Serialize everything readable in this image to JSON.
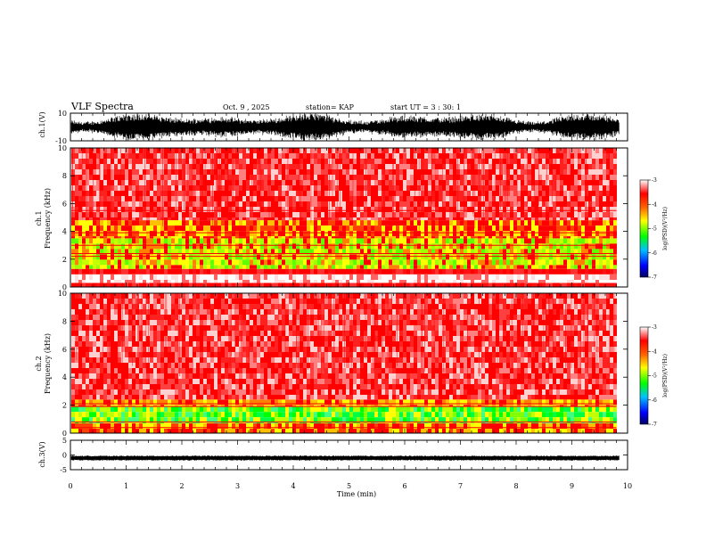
{
  "header": {
    "title": "VLF Spectra",
    "date": "Oct. 9 , 2025",
    "station": "station= KAP",
    "start": "start UT =  3 : 30: 1"
  },
  "chart_data": [
    {
      "type": "line",
      "name": "ch1-waveform",
      "ylabel": "ch.1(V)",
      "ylim": [
        -10,
        10
      ],
      "yticks": [
        "10",
        "-10"
      ],
      "xlim": [
        0,
        10
      ],
      "description_of_signal": "noisy broadband waveform spanning nearly full range"
    },
    {
      "type": "heatmap",
      "name": "ch1-spectrogram",
      "ylabel": "ch.1\nFrequency (kHz)",
      "ylim": [
        0,
        10
      ],
      "yticks": [
        "0",
        "2",
        "4",
        "6",
        "8",
        "10"
      ],
      "xlim": [
        0,
        10
      ],
      "data_end_min": 9.8,
      "colorbar": {
        "label": "log(PSD)(V²/Hz)",
        "range": [
          -7,
          -3
        ],
        "ticks": [
          "-3",
          "-4",
          "-5",
          "-6",
          "-7"
        ]
      },
      "bands": [
        {
          "from_khz": 0.0,
          "to_khz": 0.3,
          "level": "red"
        },
        {
          "from_khz": 0.3,
          "to_khz": 0.9,
          "level": "white"
        },
        {
          "from_khz": 0.9,
          "to_khz": 1.3,
          "level": "red"
        },
        {
          "from_khz": 1.3,
          "to_khz": 3.5,
          "level": "yellow-green"
        },
        {
          "from_khz": 3.5,
          "to_khz": 4.8,
          "level": "red-yellow"
        },
        {
          "from_khz": 4.8,
          "to_khz": 10.0,
          "level": "red-white"
        }
      ]
    },
    {
      "type": "heatmap",
      "name": "ch2-spectrogram",
      "ylabel": "ch.2\nFrequency (kHz)",
      "ylim": [
        0,
        10
      ],
      "yticks": [
        "0",
        "2",
        "4",
        "6",
        "8",
        "10"
      ],
      "xlim": [
        0,
        10
      ],
      "data_end_min": 9.8,
      "colorbar": {
        "label": "log(PSD)(V²/Hz)",
        "range": [
          -7,
          -3
        ],
        "ticks": [
          "-3",
          "-4",
          "-5",
          "-6",
          "-7"
        ]
      },
      "bands": [
        {
          "from_khz": 0.0,
          "to_khz": 0.7,
          "level": "red-yellow"
        },
        {
          "from_khz": 0.7,
          "to_khz": 1.9,
          "level": "green-yellow"
        },
        {
          "from_khz": 1.9,
          "to_khz": 2.4,
          "level": "yellow-red"
        },
        {
          "from_khz": 2.4,
          "to_khz": 10.0,
          "level": "red-white"
        }
      ]
    },
    {
      "type": "line",
      "name": "ch3-waveform",
      "ylabel": "ch.3(V)",
      "ylim": [
        -5,
        5
      ],
      "yticks": [
        "5",
        "0",
        "-5"
      ],
      "xlim": [
        0,
        10
      ],
      "description_of_signal": "narrow band around -1 V"
    }
  ],
  "xaxis": {
    "label": "Time (min)",
    "ticks": [
      "0",
      "1",
      "2",
      "3",
      "4",
      "5",
      "6",
      "7",
      "8",
      "9",
      "10"
    ]
  },
  "colors": {
    "low": "#000080",
    "mid_low": "#0000ff",
    "mid": "#00ff00",
    "mid_high": "#ffff00",
    "high": "#ff0000",
    "top": "#ffffff"
  }
}
